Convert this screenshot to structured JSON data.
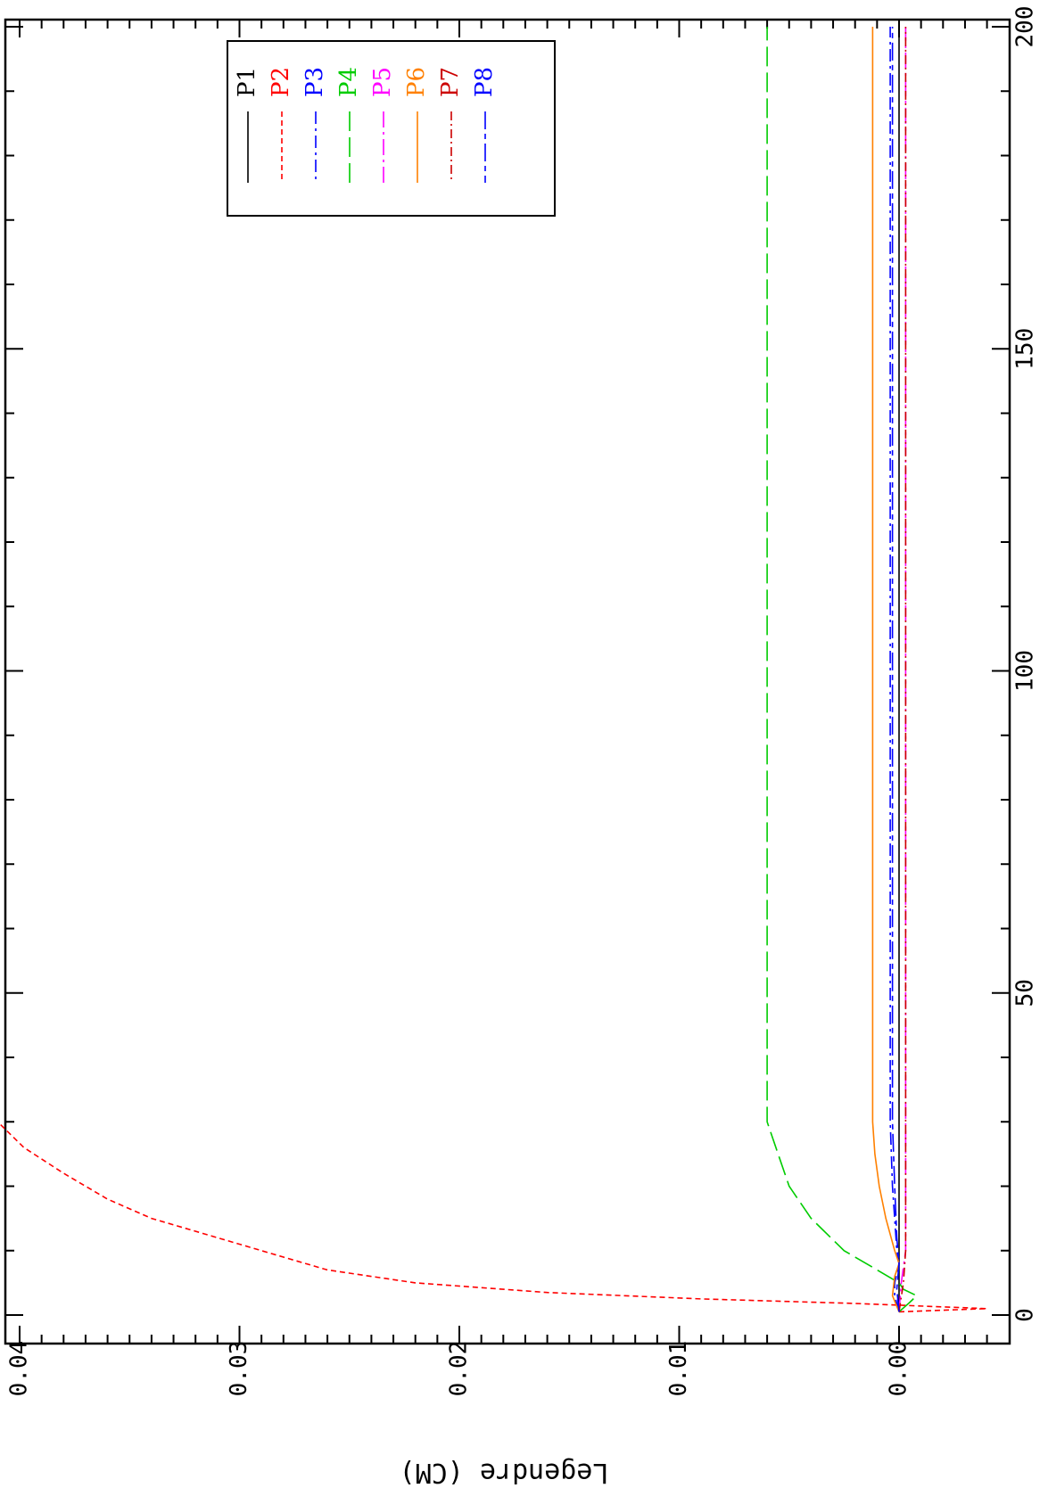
{
  "chart_data": {
    "type": "line",
    "orientation": "rotated-90-clockwise",
    "title": "",
    "xlabel": "",
    "ylabel": "Legendre (CM)",
    "xlim": [
      0,
      200
    ],
    "ylim": [
      -0.004,
      0.0425
    ],
    "x_ticks": [
      0,
      50,
      100,
      150,
      200
    ],
    "x_tick_labels": [
      "0",
      "50",
      "100",
      "150",
      "200"
    ],
    "y_ticks": [
      0.0,
      0.01,
      0.02,
      0.03,
      0.04
    ],
    "y_tick_labels": [
      "0.00",
      "0.01",
      "0.02",
      "0.03",
      "0.04"
    ],
    "grid": false,
    "legend_position": "top-right",
    "series": [
      {
        "name": "P1",
        "color": "#000000",
        "dash": "solid",
        "points": [
          [
            0.5,
            0.0
          ],
          [
            200,
            0.0
          ]
        ]
      },
      {
        "name": "P2",
        "color": "#ff0000",
        "dash": "short",
        "points": [
          [
            0.5,
            0.0
          ],
          [
            1,
            -0.004
          ],
          [
            1.8,
            0.002
          ],
          [
            2.5,
            0.009
          ],
          [
            3.5,
            0.016
          ],
          [
            5,
            0.022
          ],
          [
            7,
            0.026
          ],
          [
            9,
            0.028
          ],
          [
            12,
            0.031
          ],
          [
            15,
            0.034
          ],
          [
            18,
            0.036
          ],
          [
            22,
            0.038
          ],
          [
            26,
            0.0398
          ],
          [
            30,
            0.041
          ],
          [
            200,
            0.041
          ]
        ]
      },
      {
        "name": "P3",
        "color": "#0000ff",
        "dash": "dashdot",
        "points": [
          [
            0.5,
            0.0
          ],
          [
            3,
            0.0002
          ],
          [
            5,
            0.0002
          ],
          [
            8,
            0.0
          ],
          [
            10,
            0.0001
          ],
          [
            15,
            0.0002
          ],
          [
            20,
            0.0003
          ],
          [
            30,
            0.0004
          ],
          [
            200,
            0.0004
          ]
        ]
      },
      {
        "name": "P4",
        "color": "#00cc00",
        "dash": "long",
        "points": [
          [
            0.5,
            0.0
          ],
          [
            2,
            -0.0005
          ],
          [
            3,
            -0.0008
          ],
          [
            4,
            -0.0002
          ],
          [
            5,
            0.0
          ],
          [
            7,
            0.001
          ],
          [
            10,
            0.0025
          ],
          [
            15,
            0.004
          ],
          [
            20,
            0.005
          ],
          [
            25,
            0.0055
          ],
          [
            30,
            0.006
          ],
          [
            200,
            0.006
          ]
        ]
      },
      {
        "name": "P5",
        "color": "#ff00ff",
        "dash": "longdashdot",
        "points": [
          [
            0.5,
            0.0
          ],
          [
            5,
            -0.0001
          ],
          [
            10,
            -0.0003
          ],
          [
            30,
            -0.0003
          ],
          [
            200,
            -0.0003
          ]
        ]
      },
      {
        "name": "P6",
        "color": "#ff8000",
        "dash": "solid",
        "points": [
          [
            0.5,
            0.0
          ],
          [
            3,
            0.0003
          ],
          [
            6,
            0.0002
          ],
          [
            8,
            0.0
          ],
          [
            10,
            0.0002
          ],
          [
            15,
            0.0006
          ],
          [
            20,
            0.0009
          ],
          [
            25,
            0.0011
          ],
          [
            30,
            0.0012
          ],
          [
            200,
            0.0012
          ]
        ]
      },
      {
        "name": "P7",
        "color": "#cc0000",
        "dash": "dashdot2",
        "points": [
          [
            0.5,
            0.0
          ],
          [
            5,
            -0.0002
          ],
          [
            10,
            -0.0003
          ],
          [
            30,
            -0.0003
          ],
          [
            200,
            -0.0003
          ]
        ]
      },
      {
        "name": "P8",
        "color": "#0000ff",
        "dash": "longshort",
        "points": [
          [
            0.5,
            0.0
          ],
          [
            4,
            0.0001
          ],
          [
            8,
            0.0
          ],
          [
            12,
            0.0001
          ],
          [
            20,
            0.0002
          ],
          [
            30,
            0.0003
          ],
          [
            200,
            0.0003
          ]
        ]
      }
    ]
  }
}
